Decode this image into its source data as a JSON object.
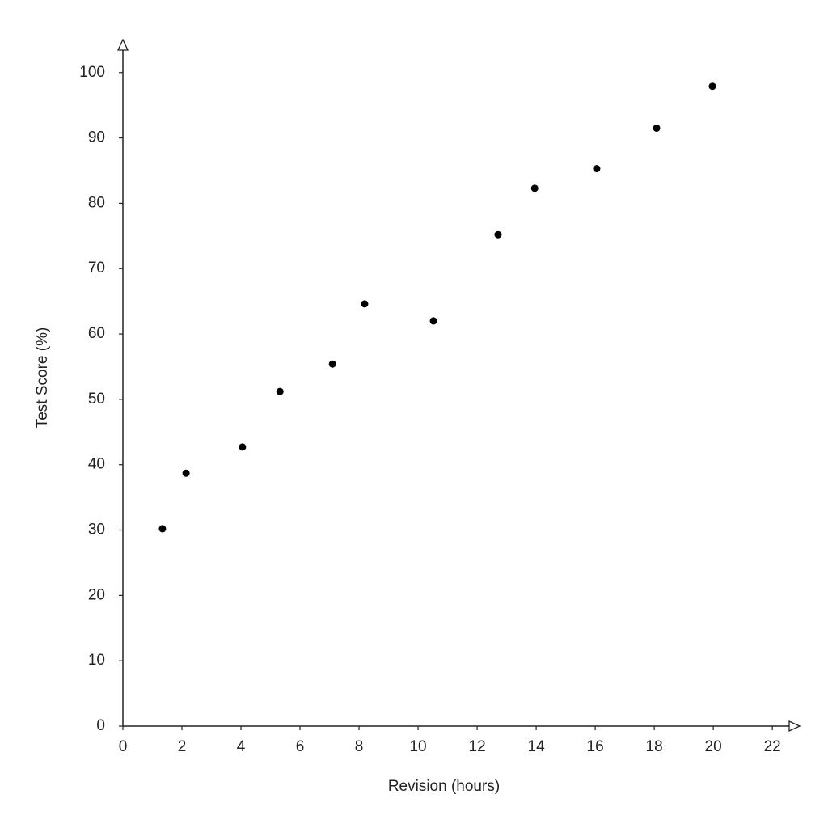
{
  "chart_data": {
    "type": "scatter",
    "x_label": "Revision (hours)",
    "y_label": "Test Score (%)",
    "x": [
      1.34,
      2.14,
      4.05,
      5.32,
      7.1,
      8.19,
      10.52,
      12.71,
      13.95,
      16.05,
      18.08,
      19.97
    ],
    "values": [
      30.2,
      38.7,
      42.7,
      51.2,
      55.4,
      64.6,
      62.0,
      75.2,
      82.3,
      85.3,
      91.5,
      97.9
    ],
    "color": "#000000",
    "xlim": [
      0,
      22.9
    ],
    "ylim": [
      0,
      104.3
    ],
    "xticks": [
      0,
      2,
      4,
      6,
      8,
      10,
      12,
      14,
      16,
      18,
      20,
      22
    ],
    "yticks": [
      0,
      10,
      20,
      30,
      40,
      50,
      60,
      70,
      80,
      90,
      100
    ],
    "grid": false
  }
}
